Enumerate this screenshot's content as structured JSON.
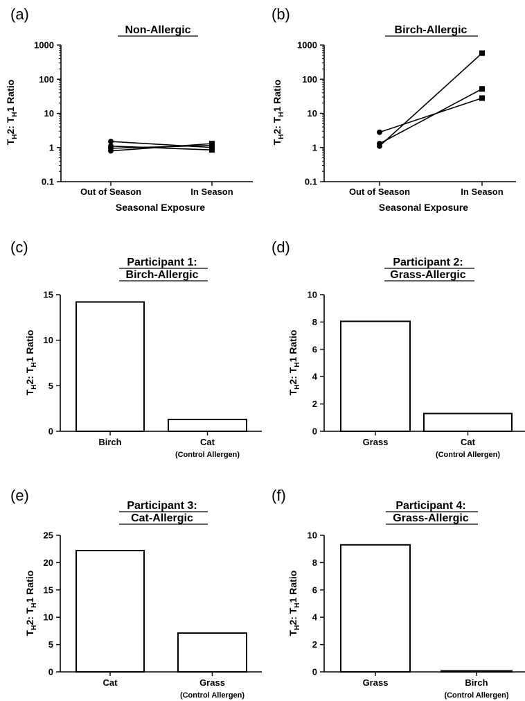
{
  "colors": {
    "axis": "#000000",
    "bar_fill": "#ffffff",
    "marker": "#000000"
  },
  "chart_data": [
    {
      "panel": "(a)",
      "type": "line",
      "title": "Non-Allergic",
      "xlabel": "Seasonal Exposure",
      "ylabel": {
        "pre": "T",
        "s1": "H",
        "mid": "2: T",
        "s2": "H",
        "post": "1 Ratio"
      },
      "yscale": "log",
      "ylim": [
        0.1,
        1000
      ],
      "ytick_labels": [
        "0.1",
        "1",
        "10",
        "100",
        "1000"
      ],
      "yticks": [
        0.1,
        1,
        10,
        100,
        1000
      ],
      "categories": [
        "Out of Season",
        "In Season"
      ],
      "series": [
        {
          "values": [
            1.5,
            1.0
          ]
        },
        {
          "values": [
            1.1,
            0.85
          ]
        },
        {
          "values": [
            0.8,
            1.3
          ]
        },
        {
          "values": [
            0.95,
            1.15
          ]
        }
      ]
    },
    {
      "panel": "(b)",
      "type": "line",
      "title": "Birch-Allergic",
      "xlabel": "Seasonal Exposure",
      "ylabel": {
        "pre": "T",
        "s1": "H",
        "mid": "2: T",
        "s2": "H",
        "post": "1 Ratio"
      },
      "yscale": "log",
      "ylim": [
        0.1,
        1000
      ],
      "ytick_labels": [
        "0.1",
        "1",
        "10",
        "100",
        "1000"
      ],
      "yticks": [
        0.1,
        1,
        10,
        100,
        1000
      ],
      "categories": [
        "Out of Season",
        "In Season"
      ],
      "series": [
        {
          "values": [
            2.8,
            28
          ]
        },
        {
          "values": [
            1.3,
            52
          ]
        },
        {
          "values": [
            1.1,
            580
          ]
        }
      ]
    },
    {
      "panel": "(c)",
      "type": "bar",
      "title": [
        "Participant 1:",
        "Birch-Allergic"
      ],
      "ylabel": {
        "pre": "T",
        "s1": "H",
        "mid": "2: T",
        "s2": "H",
        "post": "1 Ratio"
      },
      "ylim": [
        0,
        15
      ],
      "ytick_labels": [
        "0",
        "5",
        "10",
        "15"
      ],
      "yticks": [
        0,
        5,
        10,
        15
      ],
      "categories": [
        "Birch",
        "Cat"
      ],
      "sublabels": [
        "",
        "(Control Allergen)"
      ],
      "values": [
        14.2,
        1.3
      ]
    },
    {
      "panel": "(d)",
      "type": "bar",
      "title": [
        "Participant 2:",
        "Grass-Allergic"
      ],
      "ylabel": {
        "pre": "T",
        "s1": "H",
        "mid": "2: T",
        "s2": "H",
        "post": "1 Ratio"
      },
      "ylim": [
        0,
        10
      ],
      "ytick_labels": [
        "0",
        "2",
        "4",
        "6",
        "8",
        "10"
      ],
      "yticks": [
        0,
        2,
        4,
        6,
        8,
        10
      ],
      "categories": [
        "Grass",
        "Cat"
      ],
      "sublabels": [
        "",
        "(Control Allergen)"
      ],
      "values": [
        8.05,
        1.3
      ]
    },
    {
      "panel": "(e)",
      "type": "bar",
      "title": [
        "Participant 3:",
        "Cat-Allergic"
      ],
      "ylabel": {
        "pre": "T",
        "s1": "H",
        "mid": "2: T",
        "s2": "H",
        "post": "1 Ratio"
      },
      "ylim": [
        0,
        25
      ],
      "ytick_labels": [
        "0",
        "5",
        "10",
        "15",
        "20",
        "25"
      ],
      "yticks": [
        0,
        5,
        10,
        15,
        20,
        25
      ],
      "categories": [
        "Cat",
        "Grass"
      ],
      "sublabels": [
        "",
        "(Control Allergen)"
      ],
      "values": [
        22.2,
        7.1
      ]
    },
    {
      "panel": "(f)",
      "type": "bar",
      "title": [
        "Participant 4:",
        "Grass-Allergic"
      ],
      "ylabel": {
        "pre": "T",
        "s1": "H",
        "mid": "2: T",
        "s2": "H",
        "post": "1 Ratio"
      },
      "ylim": [
        0,
        10
      ],
      "ytick_labels": [
        "0",
        "2",
        "4",
        "6",
        "8",
        "10"
      ],
      "yticks": [
        0,
        2,
        4,
        6,
        8,
        10
      ],
      "categories": [
        "Grass",
        "Birch"
      ],
      "sublabels": [
        "",
        "(Control Allergen)"
      ],
      "values": [
        9.3,
        0.05
      ]
    }
  ]
}
